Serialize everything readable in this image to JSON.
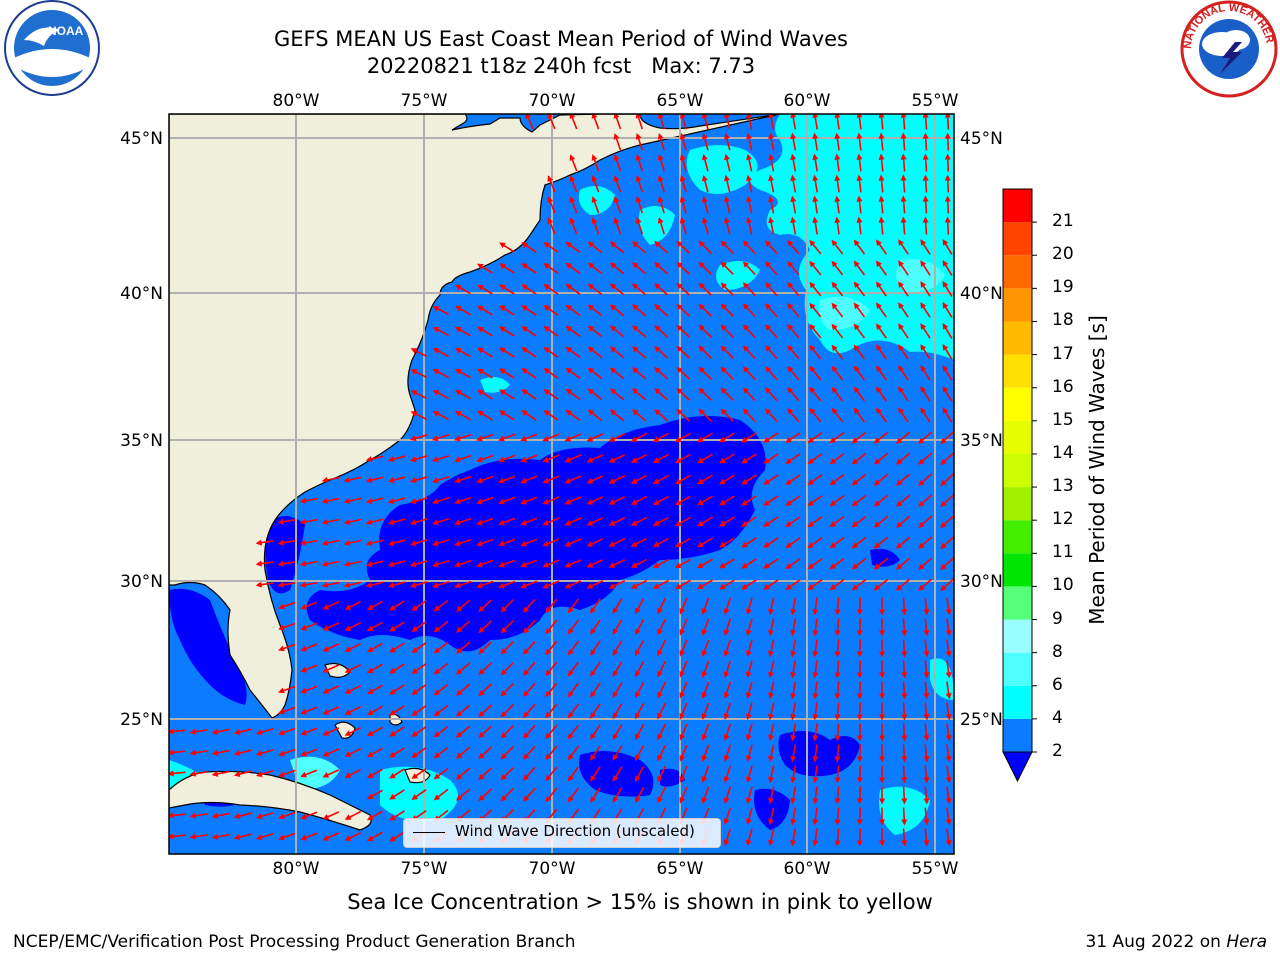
{
  "title": {
    "line1": "GEFS MEAN US East Coast Mean Period of Wind Waves",
    "line2": "20220821 t18z 240h fcst   Max: 7.73"
  },
  "axes": {
    "lon_labels": [
      "80°W",
      "75°W",
      "70°W",
      "65°W",
      "60°W",
      "55°W"
    ],
    "lat_labels": [
      "45°N",
      "40°N",
      "35°N",
      "30°N",
      "25°N"
    ]
  },
  "legend": {
    "label": "Wind Wave Direction (unscaled)"
  },
  "colorbar": {
    "label": "Mean Period of Wind Waves [s]",
    "ticks": [
      "2",
      "4",
      "6",
      "8",
      "9",
      "10",
      "11",
      "12",
      "13",
      "14",
      "15",
      "16",
      "17",
      "18",
      "19",
      "20",
      "21"
    ],
    "colors": [
      "#0b7cff",
      "#00ffff",
      "#4dffff",
      "#99ffff",
      "#55ff7a",
      "#00e600",
      "#44ee00",
      "#a0f000",
      "#ccff00",
      "#e6ff00",
      "#ffff00",
      "#ffe000",
      "#ffbb00",
      "#ff9500",
      "#ff6a00",
      "#ff4400",
      "#ff0000"
    ],
    "extend_color": "#0000ff"
  },
  "caption": "Sea Ice Concentration > 15% is shown in pink to yellow",
  "footer": {
    "left": "NCEP/EMC/Verification Post Processing Product Generation Branch",
    "right_prefix": "31 Aug 2022 on ",
    "right_machine": "Hera"
  },
  "logos": {
    "left": "NOAA",
    "right": "NATIONAL WEATHER SERVICE"
  },
  "colors": {
    "land": "#efefdc",
    "vectors": "#ff0000",
    "grid": "#b0b0b0"
  }
}
